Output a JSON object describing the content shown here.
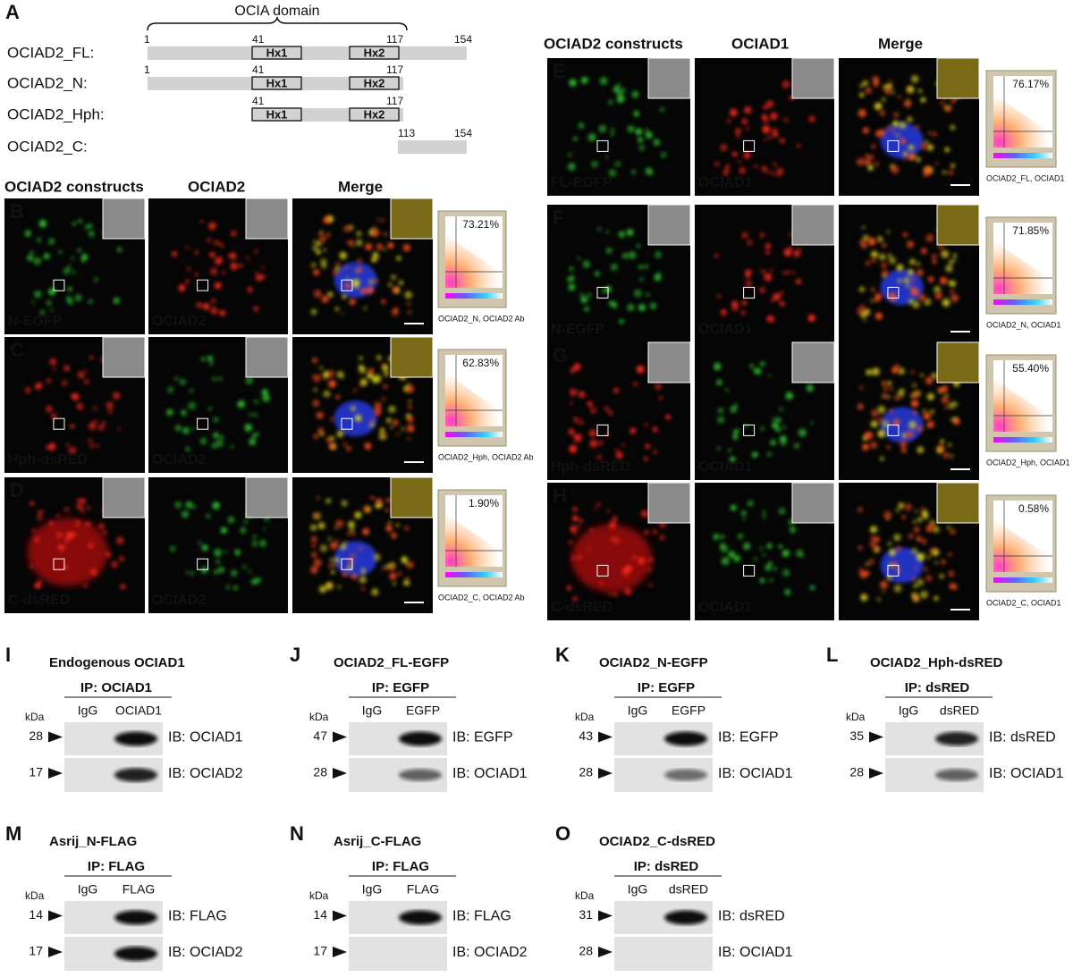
{
  "panel_a": {
    "letter": "A",
    "domain_label": "OCIA domain",
    "helix_labels": [
      "Hx1",
      "Hx2"
    ],
    "constructs": [
      {
        "name": "OCIAD2_FL:",
        "residues": [
          1,
          41,
          117,
          154
        ]
      },
      {
        "name": "OCIAD2_N:",
        "residues": [
          1,
          41,
          117
        ]
      },
      {
        "name": "OCIAD2_Hph:",
        "residues": [
          41,
          117
        ]
      },
      {
        "name": "OCIAD2_C:",
        "residues": [
          113,
          154
        ]
      }
    ]
  },
  "imaging": [
    {
      "headers": [
        "OCIAD2 constructs",
        "OCIAD2",
        "Merge"
      ],
      "rows": [
        {
          "letter": "B",
          "construct_label": "N-EGFP",
          "stain_label": "OCIAD2",
          "colocalization": "73.21%",
          "plot_caption": "OCIAD2_N, OCIAD2 Ab"
        },
        {
          "letter": "C",
          "construct_label": "Hph-dsRED",
          "stain_label": "OCIAD2",
          "colocalization": "62.83%",
          "plot_caption": "OCIAD2_Hph, OCIAD2 Ab"
        },
        {
          "letter": "D",
          "construct_label": "C-dsRED",
          "stain_label": "OCIAD2",
          "colocalization": "1.90%",
          "plot_caption": "OCIAD2_C, OCIAD2 Ab"
        }
      ]
    },
    {
      "headers": [
        "OCIAD2 constructs",
        "OCIAD1",
        "Merge"
      ],
      "rows": [
        {
          "letter": "E",
          "construct_label": "FL-EGFP",
          "stain_label": "OCIAD1",
          "colocalization": "76.17%",
          "plot_caption": "OCIAD2_FL, OCIAD1"
        },
        {
          "letter": "F",
          "construct_label": "N-EGFP",
          "stain_label": "OCIAD1",
          "colocalization": "71.85%",
          "plot_caption": "OCIAD2_N, OCIAD1"
        },
        {
          "letter": "G",
          "construct_label": "Hph-dsRED",
          "stain_label": "OCIAD1",
          "colocalization": "55.40%",
          "plot_caption": "OCIAD2_Hph, OCIAD1"
        },
        {
          "letter": "H",
          "construct_label": "C-dsRED",
          "stain_label": "OCIAD1",
          "colocalization": "0.58%",
          "plot_caption": "OCIAD2_C, OCIAD1"
        }
      ]
    }
  ],
  "blots": [
    {
      "letter": "I",
      "title": "Endogenous OCIAD1",
      "ip": "IP: OCIAD1",
      "lanes": [
        "IgG",
        "OCIAD1"
      ],
      "kda_label": "kDa",
      "rows": [
        {
          "kda": 28,
          "ib": "IB: OCIAD1"
        },
        {
          "kda": 17,
          "ib": "IB: OCIAD2"
        }
      ]
    },
    {
      "letter": "J",
      "title": "OCIAD2_FL-EGFP",
      "ip": "IP: EGFP",
      "lanes": [
        "IgG",
        "EGFP"
      ],
      "kda_label": "kDa",
      "rows": [
        {
          "kda": 47,
          "ib": "IB: EGFP"
        },
        {
          "kda": 28,
          "ib": "IB: OCIAD1"
        }
      ]
    },
    {
      "letter": "K",
      "title": "OCIAD2_N-EGFP",
      "ip": "IP: EGFP",
      "lanes": [
        "IgG",
        "EGFP"
      ],
      "kda_label": "kDa",
      "rows": [
        {
          "kda": 43,
          "ib": "IB: EGFP"
        },
        {
          "kda": 28,
          "ib": "IB: OCIAD1"
        }
      ]
    },
    {
      "letter": "L",
      "title": "OCIAD2_Hph-dsRED",
      "ip": "IP: dsRED",
      "lanes": [
        "IgG",
        "dsRED"
      ],
      "kda_label": "kDa",
      "rows": [
        {
          "kda": 35,
          "ib": "IB: dsRED"
        },
        {
          "kda": 28,
          "ib": "IB: OCIAD1"
        }
      ]
    },
    {
      "letter": "M",
      "title": "Asrij_N-FLAG",
      "ip": "IP: FLAG",
      "lanes": [
        "IgG",
        "FLAG"
      ],
      "kda_label": "kDa",
      "rows": [
        {
          "kda": 14,
          "ib": "IB: FLAG"
        },
        {
          "kda": 17,
          "ib": "IB: OCIAD2"
        }
      ]
    },
    {
      "letter": "N",
      "title": "Asrij_C-FLAG",
      "ip": "IP: FLAG",
      "lanes": [
        "IgG",
        "FLAG"
      ],
      "kda_label": "kDa",
      "rows": [
        {
          "kda": 14,
          "ib": "IB: FLAG"
        },
        {
          "kda": 17,
          "ib": "IB: OCIAD2"
        }
      ]
    },
    {
      "letter": "O",
      "title": "OCIAD2_C-dsRED",
      "ip": "IP: dsRED",
      "lanes": [
        "IgG",
        "dsRED"
      ],
      "kda_label": "kDa",
      "rows": [
        {
          "kda": 31,
          "ib": "IB: dsRED"
        },
        {
          "kda": 28,
          "ib": "IB: OCIAD1"
        }
      ]
    }
  ]
}
